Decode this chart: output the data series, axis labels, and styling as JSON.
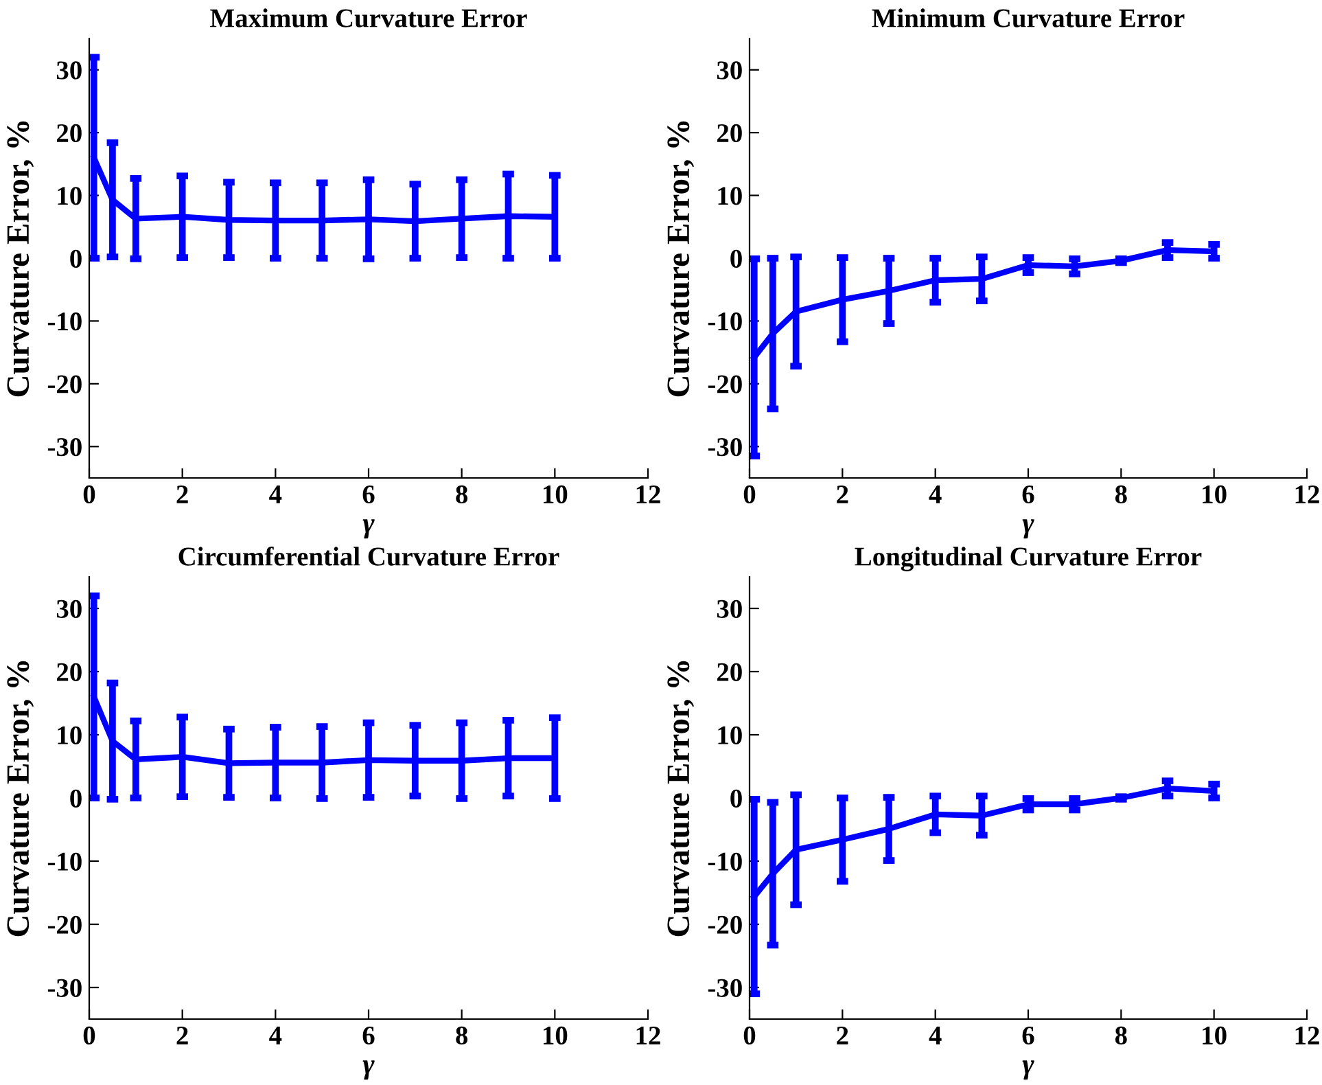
{
  "chart_data": [
    {
      "type": "line",
      "title": "Maximum Curvature Error",
      "xlabel": "γ",
      "ylabel": "Curvature Error, %",
      "x": [
        0.1,
        0.5,
        1,
        2,
        3,
        4,
        5,
        6,
        7,
        8,
        9,
        10
      ],
      "series": [
        {
          "color": "#0000ff",
          "values": [
            16,
            9.3,
            6.3,
            6.6,
            6.1,
            6,
            6,
            6.2,
            5.9,
            6.3,
            6.7,
            6.6
          ],
          "errors": [
            16,
            9.1,
            6.4,
            6.5,
            6,
            6,
            6,
            6.3,
            5.9,
            6.2,
            6.7,
            6.6
          ]
        }
      ],
      "xlim": [
        0,
        12
      ],
      "xticks": [
        0,
        2,
        4,
        6,
        8,
        10,
        12
      ],
      "ylim": [
        -35,
        35
      ],
      "yticks": [
        -30,
        -20,
        -10,
        0,
        10,
        20,
        30
      ],
      "grid": false,
      "legend": false,
      "marker": "none",
      "line_style": "solid"
    },
    {
      "type": "line",
      "title": "Minimum Curvature Error",
      "xlabel": "γ",
      "ylabel": "Curvature Error, %",
      "x": [
        0.1,
        0.5,
        1,
        2,
        3,
        4,
        5,
        6,
        7,
        8,
        9,
        10
      ],
      "series": [
        {
          "color": "#0000ff",
          "values": [
            -15.8,
            -12,
            -8.5,
            -6.6,
            -5.2,
            -3.5,
            -3.3,
            -1.1,
            -1.3,
            -0.4,
            1.3,
            1.1
          ],
          "errors": [
            15.7,
            12,
            8.7,
            6.7,
            5.2,
            3.5,
            3.5,
            1.2,
            1.2,
            0.3,
            1.2,
            1.1
          ]
        }
      ],
      "xlim": [
        0,
        12
      ],
      "xticks": [
        0,
        2,
        4,
        6,
        8,
        10,
        12
      ],
      "ylim": [
        -35,
        35
      ],
      "yticks": [
        -30,
        -20,
        -10,
        0,
        10,
        20,
        30
      ],
      "grid": false,
      "legend": false,
      "marker": "none",
      "line_style": "solid"
    },
    {
      "type": "line",
      "title": "Circumferential Curvature Error",
      "xlabel": "γ",
      "ylabel": "Curvature Error, %",
      "x": [
        0.1,
        0.5,
        1,
        2,
        3,
        4,
        5,
        6,
        7,
        8,
        9,
        10
      ],
      "series": [
        {
          "color": "#0000ff",
          "values": [
            16,
            9,
            6.1,
            6.5,
            5.5,
            5.6,
            5.6,
            6,
            5.9,
            5.9,
            6.3,
            6.3
          ],
          "errors": [
            16,
            9.2,
            6.1,
            6.3,
            5.4,
            5.6,
            5.7,
            5.9,
            5.6,
            6,
            6,
            6.4
          ]
        }
      ],
      "xlim": [
        0,
        12
      ],
      "xticks": [
        0,
        2,
        4,
        6,
        8,
        10,
        12
      ],
      "ylim": [
        -35,
        35
      ],
      "yticks": [
        -30,
        -20,
        -10,
        0,
        10,
        20,
        30
      ],
      "grid": false,
      "legend": false,
      "marker": "none",
      "line_style": "solid"
    },
    {
      "type": "line",
      "title": "Longitudinal Curvature Error",
      "xlabel": "γ",
      "ylabel": "Curvature Error, %",
      "x": [
        0.1,
        0.5,
        1,
        2,
        3,
        4,
        5,
        6,
        7,
        8,
        9,
        10
      ],
      "series": [
        {
          "color": "#0000ff",
          "values": [
            -15.6,
            -12,
            -8.2,
            -6.6,
            -4.9,
            -2.6,
            -2.8,
            -1,
            -1,
            0,
            1.5,
            1.1
          ],
          "errors": [
            15.4,
            11.3,
            8.7,
            6.6,
            5,
            2.9,
            3.1,
            0.9,
            0.9,
            0.2,
            1.2,
            1.1
          ]
        }
      ],
      "xlim": [
        0,
        12
      ],
      "xticks": [
        0,
        2,
        4,
        6,
        8,
        10,
        12
      ],
      "ylim": [
        -35,
        35
      ],
      "yticks": [
        -30,
        -20,
        -10,
        0,
        10,
        20,
        30
      ],
      "grid": false,
      "legend": false,
      "marker": "none",
      "line_style": "solid"
    }
  ]
}
